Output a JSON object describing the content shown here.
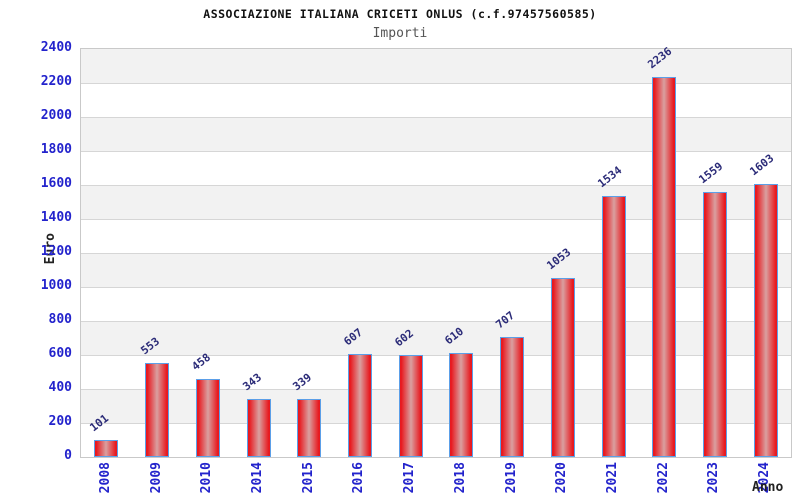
{
  "chart_data": {
    "type": "bar",
    "title": "ASSOCIAZIONE ITALIANA CRICETI ONLUS (c.f.97457560585)",
    "subtitle": "Importi",
    "xlabel": "Anno",
    "ylabel": "Euro",
    "categories": [
      "2008",
      "2009",
      "2010",
      "2014",
      "2015",
      "2016",
      "2017",
      "2018",
      "2019",
      "2020",
      "2021",
      "2022",
      "2023",
      "2024"
    ],
    "values": [
      101,
      553,
      458,
      343,
      339,
      607,
      602,
      610,
      707,
      1053,
      1534,
      2236,
      1559,
      1603
    ],
    "ylim": [
      0,
      2400
    ],
    "ytick_step": 200,
    "grid": "horizontal-bands",
    "legend": "none",
    "colors": {
      "bar_edge": "#e8191f",
      "bar_center": "#d9a0a0",
      "bar_border": "#5b9fe8",
      "axis_tick_text": "#2323cc",
      "value_label_text": "#2b2b78",
      "title_text": "#111111",
      "subtitle_text": "#555555",
      "axis_name_text": "#222222",
      "band_gray": "#f2f2f2",
      "band_white": "#ffffff",
      "gridline": "#d6d6d6",
      "plot_border": "#c9c9c9"
    }
  }
}
